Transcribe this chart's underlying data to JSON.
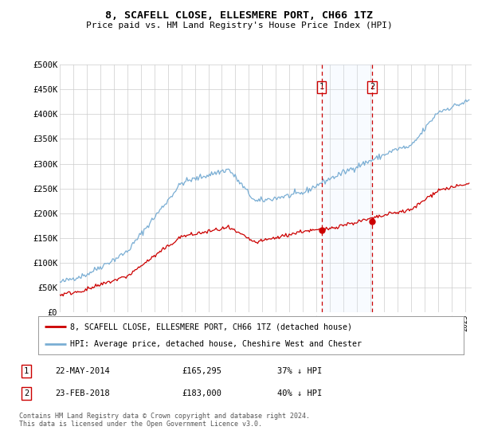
{
  "title": "8, SCAFELL CLOSE, ELLESMERE PORT, CH66 1TZ",
  "subtitle": "Price paid vs. HM Land Registry's House Price Index (HPI)",
  "ylabel_ticks": [
    "£0",
    "£50K",
    "£100K",
    "£150K",
    "£200K",
    "£250K",
    "£300K",
    "£350K",
    "£400K",
    "£450K",
    "£500K"
  ],
  "ytick_values": [
    0,
    50000,
    100000,
    150000,
    200000,
    250000,
    300000,
    350000,
    400000,
    450000,
    500000
  ],
  "xlim_start": 1995.0,
  "xlim_end": 2025.5,
  "ylim": [
    0,
    500000
  ],
  "hpi_color": "#7aaed4",
  "price_color": "#cc0000",
  "transaction1_date": 2014.38,
  "transaction1_price": 165295,
  "transaction2_date": 2018.12,
  "transaction2_price": 183000,
  "legend_line1": "8, SCAFELL CLOSE, ELLESMERE PORT, CH66 1TZ (detached house)",
  "legend_line2": "HPI: Average price, detached house, Cheshire West and Chester",
  "table_row1": [
    "1",
    "22-MAY-2014",
    "£165,295",
    "37% ↓ HPI"
  ],
  "table_row2": [
    "2",
    "23-FEB-2018",
    "£183,000",
    "40% ↓ HPI"
  ],
  "footer": "Contains HM Land Registry data © Crown copyright and database right 2024.\nThis data is licensed under the Open Government Licence v3.0.",
  "background_color": "#ffffff",
  "grid_color": "#cccccc",
  "shade_color": "#ddeeff"
}
